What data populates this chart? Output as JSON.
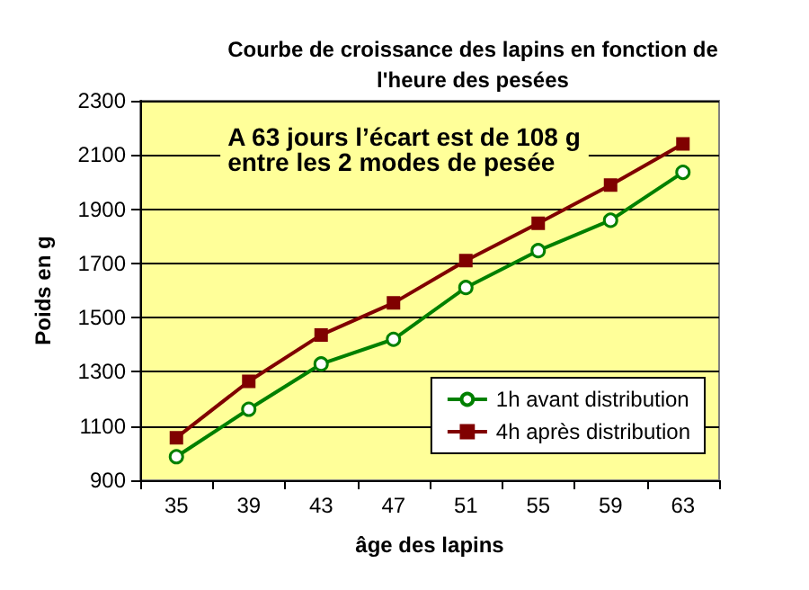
{
  "chart_data": {
    "type": "line",
    "title": "Courbe de croissance des lapins en fonction de\nl'heure des pesées",
    "xlabel": "âge des lapins",
    "ylabel": "Poids en g",
    "categories": [
      "35",
      "39",
      "43",
      "47",
      "51",
      "55",
      "59",
      "63"
    ],
    "series": [
      {
        "name": "1h avant distribution",
        "color": "#008000",
        "marker": "circle",
        "values": [
          987,
          1162,
          1329,
          1420,
          1611,
          1747,
          1859,
          2036
        ]
      },
      {
        "name": "4h après distribution",
        "color": "#800000",
        "marker": "square",
        "values": [
          1057,
          1265,
          1436,
          1554,
          1710,
          1848,
          1989,
          2141
        ]
      }
    ],
    "ylim": [
      900,
      2300
    ],
    "yticks": [
      900,
      1100,
      1300,
      1500,
      1700,
      1900,
      2100,
      2300
    ],
    "grid": "y",
    "legend": "bottom right",
    "annotations": [
      "A 63 jours l’écart est de 108 g\nentre les 2 modes de pesée"
    ]
  }
}
